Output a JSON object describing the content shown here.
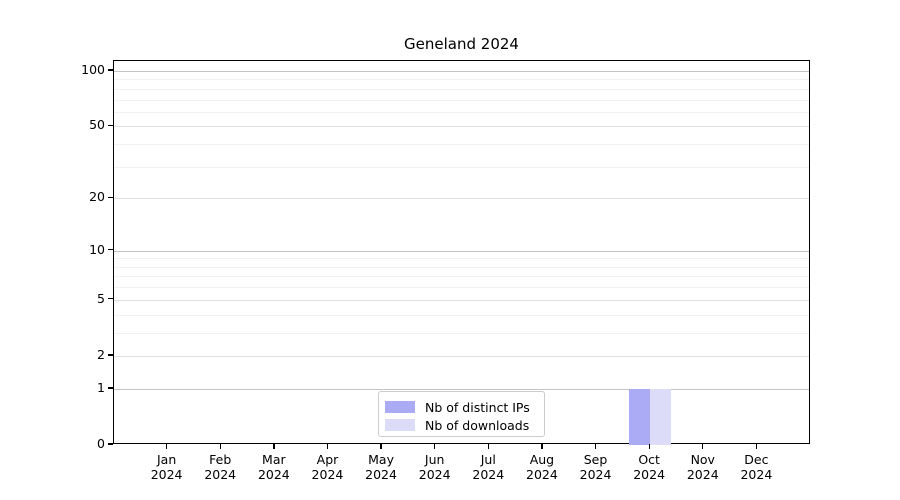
{
  "chart_data": {
    "type": "bar",
    "title": "Geneland 2024",
    "categories": [
      "Jan",
      "Feb",
      "Mar",
      "Apr",
      "May",
      "Jun",
      "Jul",
      "Aug",
      "Sep",
      "Oct",
      "Nov",
      "Dec"
    ],
    "year_label": "2024",
    "series": [
      {
        "name": "Nb of distinct IPs",
        "color": "#aaaaf5",
        "values": [
          0,
          0,
          0,
          0,
          0,
          0,
          0,
          0,
          0,
          1,
          0,
          0
        ]
      },
      {
        "name": "Nb of downloads",
        "color": "#dcdcf8",
        "values": [
          0,
          0,
          0,
          0,
          0,
          0,
          0,
          0,
          0,
          1,
          0,
          0
        ]
      }
    ],
    "yaxis": {
      "scale": "log1p",
      "ticks": [
        0,
        1,
        2,
        5,
        10,
        20,
        50,
        100
      ],
      "minor_ticks": [
        3,
        4,
        6,
        7,
        8,
        9,
        30,
        40,
        60,
        70,
        80,
        90
      ],
      "decade_ticks": [
        1,
        10,
        100
      ],
      "ylim": [
        0,
        113
      ]
    },
    "xlabel": "",
    "ylabel": "",
    "legend": {
      "position": "lower center"
    },
    "grid": true,
    "colors": {
      "axis": "#000000",
      "major_grid": "#e0e0e0",
      "decade_grid": "#c4c4c4",
      "minor_grid": "#f2f2f2"
    }
  }
}
